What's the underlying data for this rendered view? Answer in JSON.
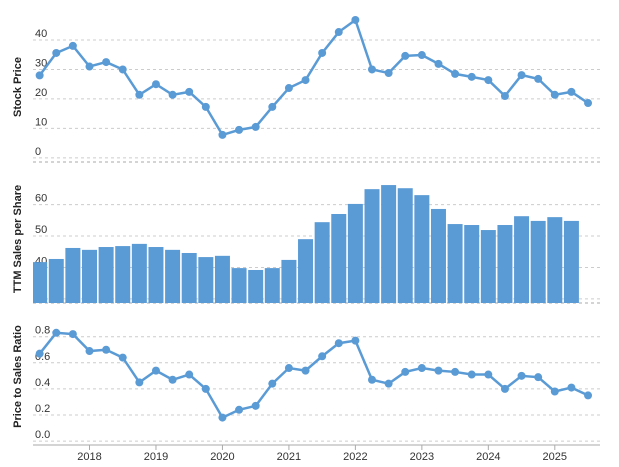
{
  "chart_data": [
    {
      "type": "line",
      "y_label": "Stock Price",
      "color": "#5b9bd5",
      "x": [
        2017.25,
        2017.5,
        2017.75,
        2018,
        2018.25,
        2018.5,
        2018.75,
        2019,
        2019.25,
        2019.5,
        2019.75,
        2020,
        2020.25,
        2020.5,
        2020.75,
        2021,
        2021.25,
        2021.5,
        2021.75,
        2022,
        2022.25,
        2022.5,
        2022.75,
        2023,
        2023.25,
        2023.5,
        2023.75,
        2024,
        2024.25,
        2024.5,
        2024.75,
        2025,
        2025.25,
        2025.5
      ],
      "values": [
        28,
        35.6,
        38,
        31,
        32.5,
        30,
        21.4,
        25,
        21.4,
        22.4,
        17.3,
        7.8,
        9.5,
        10.5,
        17.3,
        23.7,
        26.4,
        35.6,
        42.7,
        46.8,
        30,
        28.8,
        34.6,
        34.9,
        31.9,
        28.5,
        27.5,
        26.4,
        21,
        28.1,
        26.8,
        21.4,
        22.4,
        18.6
      ],
      "xlim": [
        2017.15,
        2025.68
      ],
      "ylim": [
        -1.4,
        49.5
      ],
      "yticks": [
        0,
        10,
        20,
        30,
        40
      ],
      "grid": true
    },
    {
      "type": "bar",
      "y_label": "TTM Sales per Share",
      "color": "#5b9bd5",
      "x": [
        2017.25,
        2017.5,
        2017.75,
        2018,
        2018.25,
        2018.5,
        2018.75,
        2019,
        2019.25,
        2019.5,
        2019.75,
        2020,
        2020.25,
        2020.5,
        2020.75,
        2021,
        2021.25,
        2021.5,
        2021.75,
        2022,
        2022.25,
        2022.5,
        2022.75,
        2023,
        2023.25,
        2023.5,
        2023.75,
        2024,
        2024.25,
        2024.5,
        2024.75,
        2025,
        2025.25,
        2025.5
      ],
      "values": [
        41.7,
        42.7,
        46.2,
        45.6,
        46.5,
        46.8,
        47.5,
        46.5,
        45.6,
        44.6,
        43.3,
        43.7,
        39.8,
        39.2,
        39.8,
        42.4,
        49,
        54.4,
        57,
        60.2,
        64.9,
        66.2,
        65.2,
        63,
        58.6,
        53.8,
        53.5,
        51.9,
        53.5,
        56.3,
        54.8,
        56,
        54.8,
        null
      ],
      "xlim": [
        2017.15,
        2025.68
      ],
      "ylim": [
        28.7,
        69.4
      ],
      "yticks": [
        30,
        40,
        50,
        60
      ],
      "grid": true
    },
    {
      "type": "line",
      "y_label": "Price to Sales Ratio",
      "color": "#5b9bd5",
      "x": [
        2017.25,
        2017.5,
        2017.75,
        2018,
        2018.25,
        2018.5,
        2018.75,
        2019,
        2019.25,
        2019.5,
        2019.75,
        2020,
        2020.25,
        2020.5,
        2020.75,
        2021,
        2021.25,
        2021.5,
        2021.75,
        2022,
        2022.25,
        2022.5,
        2022.75,
        2023,
        2023.25,
        2023.5,
        2023.75,
        2024,
        2024.25,
        2024.5,
        2024.75,
        2025,
        2025.25,
        2025.5
      ],
      "values": [
        0.67,
        0.83,
        0.82,
        0.69,
        0.7,
        0.64,
        0.45,
        0.54,
        0.47,
        0.51,
        0.4,
        0.18,
        0.24,
        0.27,
        0.44,
        0.56,
        0.54,
        0.65,
        0.75,
        0.77,
        0.47,
        0.44,
        0.53,
        0.56,
        0.54,
        0.53,
        0.51,
        0.51,
        0.4,
        0.5,
        0.49,
        0.38,
        0.41,
        0.35
      ],
      "xlim": [
        2017.15,
        2025.68
      ],
      "ylim": [
        -0.03,
        1.02
      ],
      "yticks": [
        {
          "value": 0,
          "label": "0.0"
        },
        0.2,
        0.4,
        0.6,
        0.8
      ],
      "grid": true,
      "xticks": [
        2018,
        2019,
        2020,
        2021,
        2022,
        2023,
        2024,
        2025
      ]
    }
  ]
}
